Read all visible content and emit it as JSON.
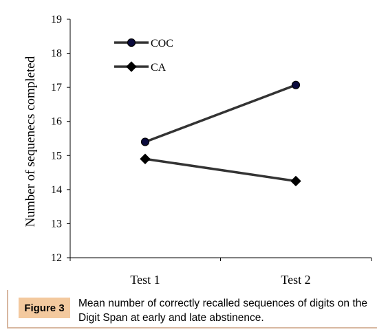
{
  "chart_data": {
    "type": "line",
    "categories": [
      "Test 1",
      "Test 2"
    ],
    "series": [
      {
        "name": "COC",
        "values": [
          15.4,
          17.07
        ],
        "marker": "circle",
        "marker_color": "#0a0a3c"
      },
      {
        "name": "CA",
        "values": [
          14.9,
          14.25
        ],
        "marker": "diamond",
        "marker_color": "#000000"
      }
    ],
    "ylabel": "Number of sequenecs completed",
    "xlabel": "",
    "ylim": [
      12,
      19
    ],
    "yticks": [
      12,
      13,
      14,
      15,
      16,
      17,
      18,
      19
    ],
    "grid": false,
    "legend_placement": "top-left",
    "line_color": "#333333"
  },
  "caption": {
    "label": "Figure 3",
    "text": "Mean number of correctly recalled sequences of digits on the Digit Span at early and late abstinence."
  }
}
